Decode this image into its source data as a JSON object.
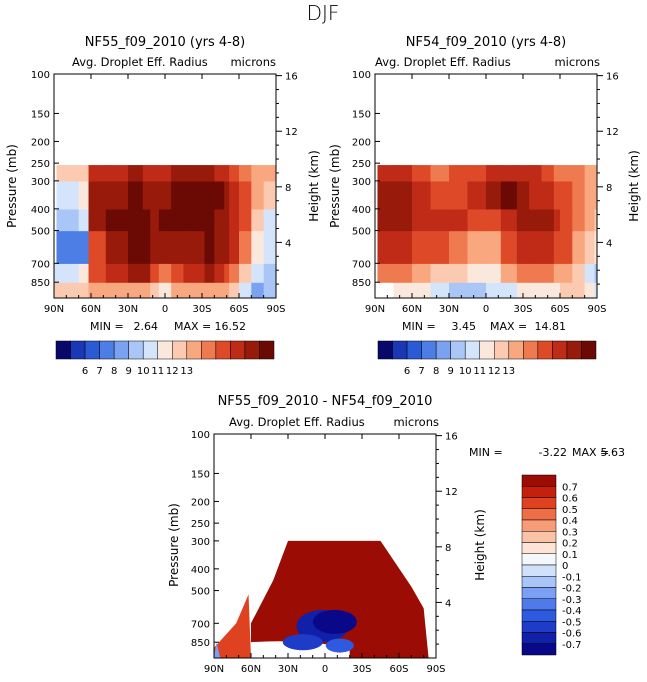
{
  "sheet_title": "DJF",
  "palettes": {
    "abs": [
      "#08086b",
      "#1a37b5",
      "#2a5ad6",
      "#4d7ee6",
      "#7aa2f0",
      "#a9c6f7",
      "#d4e4fb",
      "#fbe8dd",
      "#fccab0",
      "#f8a77e",
      "#ef7a4f",
      "#de4a28",
      "#bf2b16",
      "#981a0b",
      "#6b0a04"
    ],
    "diff": [
      "#080888",
      "#1020a8",
      "#1f3cc8",
      "#2e5ae0",
      "#4f7aeb",
      "#7a9ff3",
      "#a8c4f8",
      "#d0e1fb",
      "#f4f7fc",
      "#fde4d6",
      "#fac2a7",
      "#f69c79",
      "#ee6e46",
      "#de4221",
      "#c4200c",
      "#9a0c04"
    ]
  },
  "chart_data": [
    {
      "type": "heatmap",
      "name": "panel-nf55",
      "title": "NF55_f09_2010 (yrs 4-8)",
      "subtitle": "Avg. Droplet Eff. Radius",
      "units": "microns",
      "xlabel": "",
      "ylabel": "Pressure (mb)",
      "ylabel_right": "Height (km)",
      "x_ticks": [
        "90N",
        "60N",
        "30N",
        "0",
        "30S",
        "60S",
        "90S"
      ],
      "x_range": [
        90,
        -90
      ],
      "y_range": [
        1000,
        100
      ],
      "y_ticks": [
        100,
        150,
        200,
        250,
        300,
        400,
        500,
        700,
        850
      ],
      "height_ticks": [
        16,
        12,
        8,
        4
      ],
      "min_label": "MIN =",
      "min_value": "2.64",
      "max_label": "MAX =",
      "max_value": "16.52",
      "colorbar_ticks": [
        "6",
        "7",
        "8",
        "9",
        "10",
        "11",
        "12",
        "13"
      ],
      "palette": "abs",
      "data": [
        [
          [
            90,
            7,
            8
          ],
          [
            70,
            8,
            8
          ],
          [
            62,
            1,
            9
          ],
          [
            48,
            1,
            9
          ],
          [
            30,
            3,
            9
          ],
          [
            18,
            4,
            9
          ],
          [
            12,
            6,
            8
          ],
          [
            5,
            4,
            7
          ],
          [
            -5,
            4,
            9
          ],
          [
            -15,
            5,
            9
          ],
          [
            -22,
            1,
            9
          ],
          [
            -32,
            6,
            9
          ],
          [
            -40,
            4,
            9
          ],
          [
            -48,
            -1,
            9
          ],
          [
            -52,
            -5,
            8
          ],
          [
            -60,
            -6,
            6
          ],
          [
            -70,
            -6,
            4
          ],
          [
            -80,
            -3,
            5
          ]
        ],
        [
          [
            90,
            6,
            6
          ],
          [
            70,
            7,
            7
          ],
          [
            62,
            2,
            11
          ],
          [
            48,
            2,
            12
          ],
          [
            30,
            4,
            13
          ],
          [
            18,
            6,
            13
          ],
          [
            12,
            8,
            11
          ],
          [
            5,
            6,
            10
          ],
          [
            -5,
            5,
            11
          ],
          [
            -15,
            7,
            12
          ],
          [
            -22,
            3,
            12
          ],
          [
            -32,
            8,
            13
          ],
          [
            -40,
            6,
            12
          ],
          [
            -48,
            1,
            11
          ],
          [
            -52,
            -3,
            10
          ],
          [
            -60,
            -6,
            8
          ],
          [
            -70,
            -7,
            6
          ],
          [
            -80,
            -3,
            5
          ]
        ],
        [
          [
            88,
            5,
            3
          ],
          [
            70,
            6,
            3
          ],
          [
            62,
            3,
            11
          ],
          [
            48,
            3,
            13
          ],
          [
            30,
            6,
            14
          ],
          [
            18,
            9,
            14
          ],
          [
            12,
            9,
            13
          ],
          [
            5,
            8,
            13
          ],
          [
            -5,
            6,
            13
          ],
          [
            -15,
            9,
            13
          ],
          [
            -22,
            4,
            13
          ],
          [
            -32,
            9,
            14
          ],
          [
            -40,
            7,
            13
          ],
          [
            -48,
            3,
            13
          ],
          [
            -52,
            -1,
            12
          ],
          [
            -60,
            -5,
            10
          ],
          [
            -70,
            -8,
            7
          ],
          [
            -80,
            -4,
            6
          ]
        ],
        [
          [
            88,
            6,
            5
          ],
          [
            70,
            6,
            6
          ],
          [
            62,
            3,
            13
          ],
          [
            48,
            4,
            14
          ],
          [
            30,
            7,
            14
          ],
          [
            18,
            9,
            14
          ],
          [
            12,
            9,
            13
          ],
          [
            5,
            8,
            14
          ],
          [
            -5,
            6,
            14
          ],
          [
            -15,
            9,
            14
          ],
          [
            -22,
            5,
            14
          ],
          [
            -32,
            9,
            14
          ],
          [
            -40,
            8,
            13
          ],
          [
            -48,
            4,
            13
          ],
          [
            -52,
            1,
            12
          ],
          [
            -60,
            -3,
            11
          ],
          [
            -70,
            -6,
            8
          ],
          [
            -80,
            -4,
            6
          ]
        ],
        [
          [
            88,
            6,
            6
          ],
          [
            70,
            7,
            7
          ],
          [
            62,
            2,
            13
          ],
          [
            48,
            3,
            13
          ],
          [
            30,
            6,
            14
          ],
          [
            18,
            7,
            13
          ],
          [
            12,
            8,
            13
          ],
          [
            5,
            6,
            13
          ],
          [
            -5,
            5,
            14
          ],
          [
            -15,
            7,
            14
          ],
          [
            -22,
            6,
            14
          ],
          [
            -32,
            9,
            14
          ],
          [
            -40,
            7,
            14
          ],
          [
            -48,
            5,
            13
          ],
          [
            -52,
            2,
            12
          ],
          [
            -60,
            -2,
            11
          ],
          [
            -70,
            -4,
            9
          ],
          [
            -80,
            -3,
            8
          ]
        ],
        [
          [
            88,
            6,
            8
          ],
          [
            70,
            7,
            8
          ],
          [
            62,
            1,
            12
          ],
          [
            48,
            2,
            12
          ],
          [
            30,
            5,
            13
          ],
          [
            18,
            6,
            12
          ],
          [
            12,
            7,
            12
          ],
          [
            5,
            5,
            12
          ],
          [
            -5,
            5,
            13
          ],
          [
            -15,
            6,
            13
          ],
          [
            -22,
            4,
            13
          ],
          [
            -32,
            7,
            13
          ],
          [
            -40,
            5,
            12
          ],
          [
            -48,
            3,
            12
          ],
          [
            -52,
            1,
            11
          ],
          [
            -60,
            -1,
            10
          ],
          [
            -70,
            -3,
            9
          ],
          [
            -80,
            -1,
            9
          ]
        ]
      ]
    },
    {
      "type": "heatmap",
      "name": "panel-nf54",
      "title": "NF54_f09_2010 (yrs 4-8)",
      "subtitle": "Avg. Droplet Eff. Radius",
      "units": "microns",
      "xlabel": "",
      "ylabel": "Pressure (mb)",
      "ylabel_right": "Height (km)",
      "x_ticks": [
        "90N",
        "60N",
        "30N",
        "0",
        "30S",
        "60S",
        "90S"
      ],
      "x_range": [
        90,
        -90
      ],
      "y_range": [
        1000,
        100
      ],
      "y_ticks": [
        100,
        150,
        200,
        250,
        300,
        400,
        500,
        700,
        850
      ],
      "height_ticks": [
        16,
        12,
        8,
        4
      ],
      "min_label": "MIN =",
      "min_value": "3.45",
      "max_label": "MAX =",
      "max_value": "14.81",
      "colorbar_ticks": [
        "6",
        "7",
        "8",
        "9",
        "10",
        "11",
        "12",
        "13"
      ],
      "palette": "abs",
      "data": [
        [
          [
            75,
            4,
            7
          ],
          [
            60,
            3,
            7
          ],
          [
            45,
            1,
            6
          ],
          [
            30,
            2,
            5
          ],
          [
            15,
            4,
            5
          ],
          [
            0,
            5,
            6
          ],
          [
            -12,
            2,
            6
          ],
          [
            -25,
            3,
            7
          ],
          [
            -35,
            5,
            7
          ],
          [
            -45,
            3,
            7
          ],
          [
            -55,
            -3,
            7
          ],
          [
            -60,
            -1,
            8
          ],
          [
            -70,
            -5,
            8
          ],
          [
            -80,
            -6,
            7
          ],
          [
            -88,
            -5,
            6
          ]
        ],
        [
          [
            88,
            8,
            10
          ],
          [
            75,
            6,
            10
          ],
          [
            60,
            5,
            9
          ],
          [
            45,
            2,
            8
          ],
          [
            30,
            3,
            8
          ],
          [
            15,
            4,
            7
          ],
          [
            0,
            6,
            7
          ],
          [
            -12,
            3,
            9
          ],
          [
            -25,
            4,
            10
          ],
          [
            -35,
            6,
            10
          ],
          [
            -45,
            4,
            10
          ],
          [
            -55,
            -2,
            9
          ],
          [
            -60,
            0,
            9
          ],
          [
            -70,
            -5,
            8
          ],
          [
            -80,
            -6,
            6
          ],
          [
            -88,
            -5,
            5
          ]
        ],
        [
          [
            88,
            6,
            12
          ],
          [
            75,
            5,
            12
          ],
          [
            60,
            6,
            11
          ],
          [
            45,
            3,
            11
          ],
          [
            30,
            4,
            10
          ],
          [
            15,
            5,
            9
          ],
          [
            0,
            7,
            9
          ],
          [
            -12,
            4,
            11
          ],
          [
            -25,
            5,
            12
          ],
          [
            -35,
            7,
            12
          ],
          [
            -45,
            5,
            12
          ],
          [
            -55,
            -1,
            11
          ],
          [
            -60,
            1,
            11
          ],
          [
            -70,
            -4,
            9
          ],
          [
            -80,
            -6,
            8
          ],
          [
            -88,
            -5,
            7
          ]
        ],
        [
          [
            88,
            5,
            13
          ],
          [
            75,
            4,
            13
          ],
          [
            60,
            6,
            12
          ],
          [
            45,
            4,
            12
          ],
          [
            30,
            5,
            12
          ],
          [
            15,
            6,
            11
          ],
          [
            0,
            8,
            11
          ],
          [
            -12,
            5,
            12
          ],
          [
            -25,
            6,
            13
          ],
          [
            -35,
            8,
            13
          ],
          [
            -45,
            6,
            13
          ],
          [
            -55,
            0,
            12
          ],
          [
            -60,
            2,
            11
          ],
          [
            -70,
            -3,
            10
          ],
          [
            -80,
            -4,
            9
          ],
          [
            -88,
            -4,
            8
          ]
        ],
        [
          [
            88,
            5,
            13
          ],
          [
            75,
            4,
            13
          ],
          [
            60,
            5,
            12
          ],
          [
            45,
            4,
            11
          ],
          [
            30,
            4,
            11
          ],
          [
            15,
            5,
            12
          ],
          [
            0,
            6,
            13
          ],
          [
            -12,
            4,
            14
          ],
          [
            -25,
            5,
            13
          ],
          [
            -35,
            7,
            12
          ],
          [
            -45,
            5,
            12
          ],
          [
            -55,
            2,
            11
          ],
          [
            -60,
            3,
            11
          ],
          [
            -70,
            -2,
            10
          ],
          [
            -80,
            -3,
            9
          ],
          [
            -88,
            -3,
            9
          ]
        ],
        [
          [
            88,
            3,
            12
          ],
          [
            75,
            2,
            12
          ],
          [
            60,
            3,
            11
          ],
          [
            45,
            2,
            10
          ],
          [
            30,
            3,
            11
          ],
          [
            15,
            4,
            11
          ],
          [
            0,
            5,
            12
          ],
          [
            -12,
            3,
            12
          ],
          [
            -25,
            4,
            12
          ],
          [
            -35,
            6,
            12
          ],
          [
            -45,
            4,
            11
          ],
          [
            -55,
            2,
            10
          ],
          [
            -60,
            2,
            10
          ],
          [
            -70,
            -1,
            10
          ],
          [
            -80,
            -2,
            9
          ],
          [
            -88,
            -2,
            9
          ]
        ]
      ]
    },
    {
      "type": "heatmap",
      "name": "panel-diff",
      "title": "NF55_f09_2010 - NF54_f09_2010",
      "subtitle": "Avg. Droplet Eff. Radius",
      "units": "microns",
      "xlabel": "",
      "ylabel": "Pressure (mb)",
      "ylabel_right": "Height (km)",
      "x_ticks": [
        "90N",
        "60N",
        "30N",
        "0",
        "30S",
        "60S",
        "90S"
      ],
      "x_range": [
        90,
        -90
      ],
      "y_range": [
        1000,
        100
      ],
      "y_ticks": [
        100,
        150,
        200,
        250,
        300,
        400,
        500,
        700,
        850
      ],
      "height_ticks": [
        16,
        12,
        8,
        4
      ],
      "min_label": "MIN =",
      "min_value": "-3.22",
      "max_label": "MAX =",
      "max_value": "5.63",
      "colorbar_ticks": [
        "0.7",
        "0.6",
        "0.5",
        "0.4",
        "0.3",
        "0.2",
        "0.1",
        "0",
        "-0.1",
        "-0.2",
        "-0.3",
        "-0.4",
        "-0.5",
        "-0.6",
        "-0.7"
      ],
      "palette": "diff"
    }
  ]
}
